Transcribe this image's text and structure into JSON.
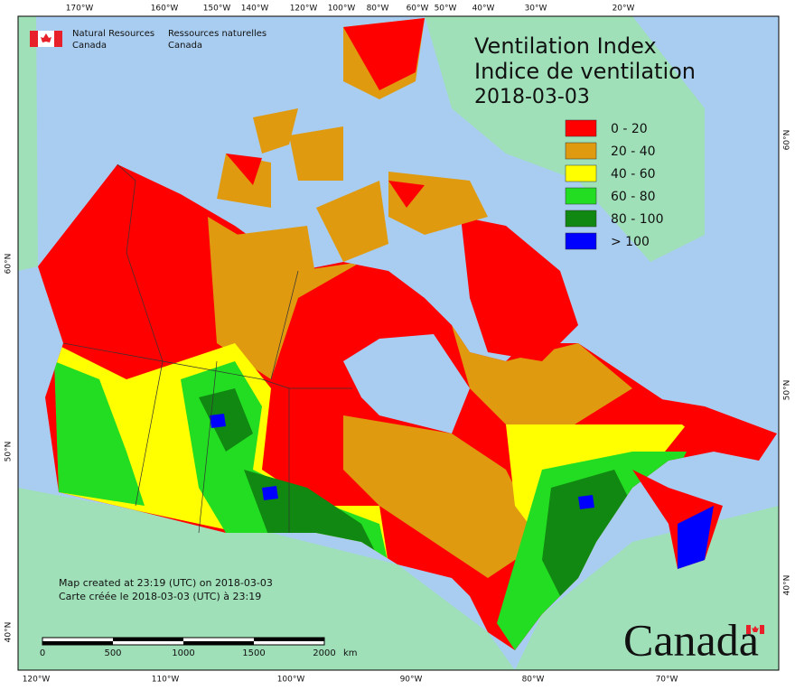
{
  "agency": {
    "en_line1": "Natural Resources",
    "en_line2": "Canada",
    "fr_line1": "Ressources naturelles",
    "fr_line2": "Canada"
  },
  "title": {
    "line1": "Ventilation Index",
    "line2": "Indice de ventilation",
    "date": "2018-03-03"
  },
  "legend": {
    "items": [
      {
        "label": "0 - 20",
        "color": "#ff0000"
      },
      {
        "label": "20 - 40",
        "color": "#e09a10"
      },
      {
        "label": "40 - 60",
        "color": "#ffff00"
      },
      {
        "label": "60 - 80",
        "color": "#22dd22"
      },
      {
        "label": "80 - 100",
        "color": "#118811"
      },
      {
        "label": "> 100",
        "color": "#0000ff"
      }
    ]
  },
  "credits": {
    "en": "Map created at 23:19 (UTC) on 2018-03-03",
    "fr": "Carte créée le 2018-03-03 (UTC) à 23:19"
  },
  "scale_bar": {
    "labels": [
      "0",
      "500",
      "1000",
      "1500",
      "2000"
    ],
    "unit": "km"
  },
  "graticule": {
    "top": [
      "170°W",
      "160°W",
      "150°W",
      "140°W",
      "120°W",
      "100°W",
      "80°W",
      "60°W",
      "50°W",
      "40°W",
      "30°W",
      "20°W"
    ],
    "bottom": [
      "120°W",
      "110°W",
      "100°W",
      "90°W",
      "80°W",
      "70°W"
    ],
    "left": [
      "60°N",
      "50°N",
      "40°N"
    ],
    "right": [
      "60°N",
      "50°N",
      "40°N"
    ]
  },
  "wordmark": "Canada"
}
